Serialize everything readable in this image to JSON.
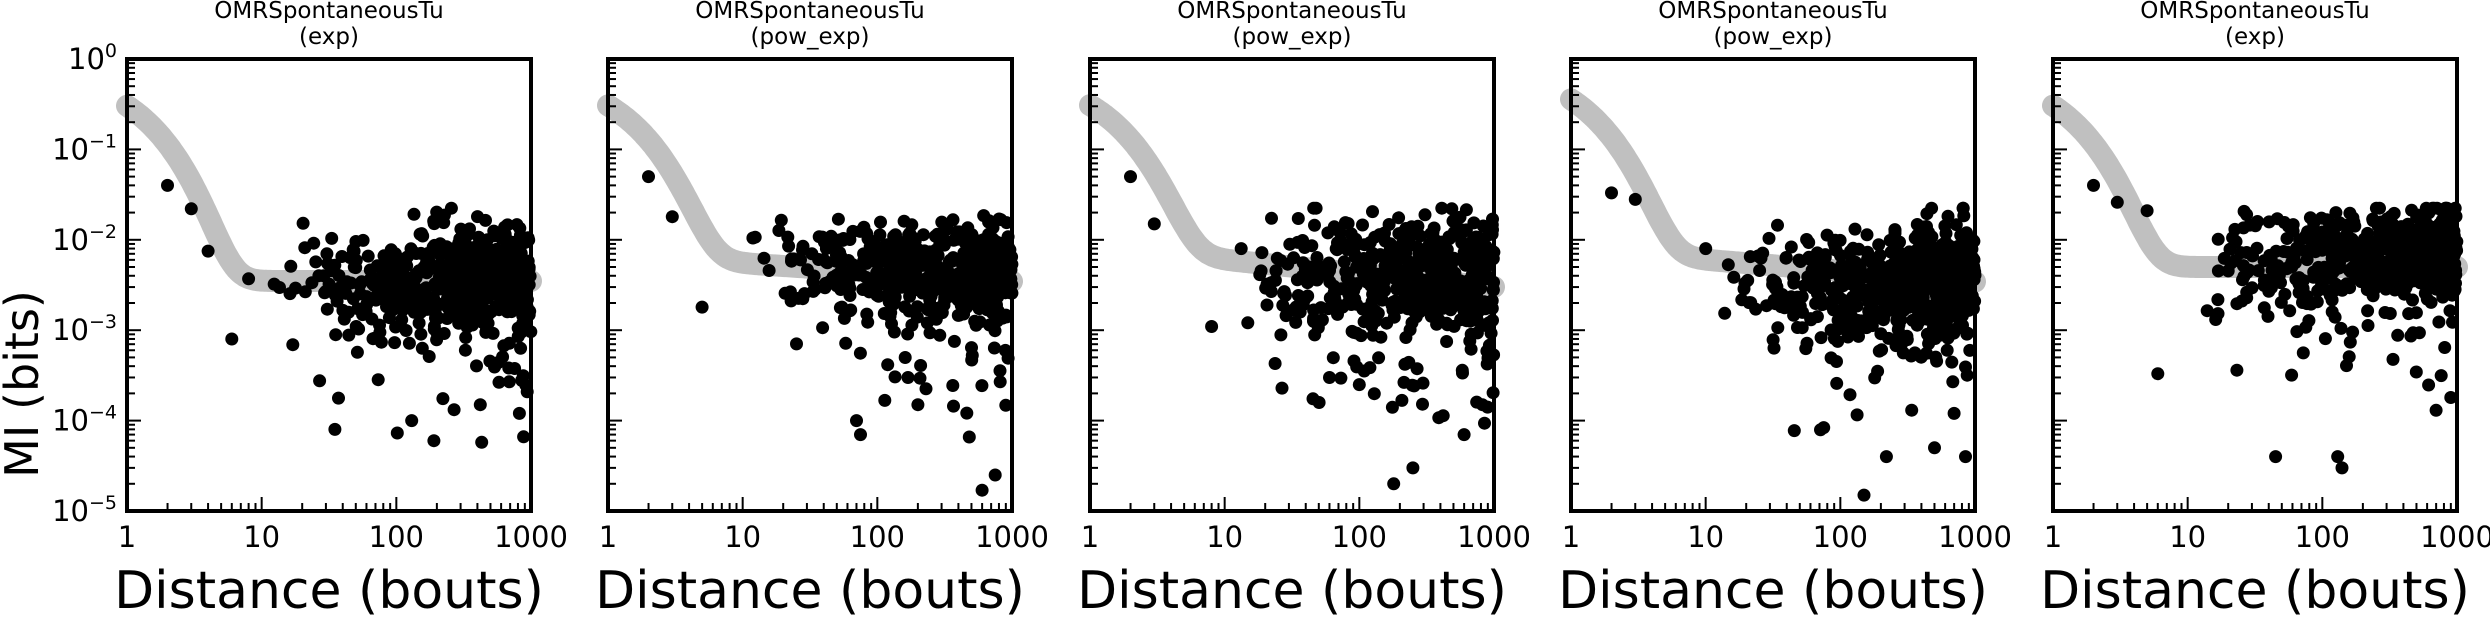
{
  "figure": {
    "ylabel": "MI (bits)",
    "ytick_labels": [
      {
        "base": "10",
        "exp": "0"
      },
      {
        "base": "10",
        "exp": "−1"
      },
      {
        "base": "10",
        "exp": "−2"
      },
      {
        "base": "10",
        "exp": "−3"
      },
      {
        "base": "10",
        "exp": "−4"
      },
      {
        "base": "10",
        "exp": "−5"
      }
    ],
    "colors": {
      "points": "#000000",
      "fit": "#c0c0c0",
      "frame": "#000000"
    }
  },
  "chart_data": [
    {
      "type": "scatter",
      "title": "OMRSpontaneousTu",
      "subtitle": "(exp)",
      "xlabel": "Distance (bouts)",
      "ylabel": "MI (bits)",
      "xscale": "log",
      "yscale": "log",
      "xlim": [
        1,
        1000
      ],
      "ylim": [
        1e-05,
        1
      ],
      "xtick_labels": [
        "1",
        "10",
        "100",
        "1000"
      ],
      "fit": {
        "model": "exponential decay + power-law floor",
        "amplitude": 0.3,
        "decay": 1.0,
        "floor": 0.0035,
        "floor_slope": 0.0
      },
      "points": {
        "described": [
          [
            2,
            0.04
          ],
          [
            3,
            0.022
          ],
          [
            4,
            0.0075
          ],
          [
            6,
            0.0008
          ],
          [
            8,
            0.0037
          ],
          [
            35,
            8e-05
          ],
          [
            130,
            0.0001
          ],
          [
            190,
            6e-05
          ],
          [
            420,
            0.00015
          ],
          [
            820,
            0.00012
          ]
        ],
        "cloud": {
          "count": 560,
          "center": 0.0035,
          "spread_dex": 0.5,
          "trend_per_decade": 0.05
        }
      }
    },
    {
      "type": "scatter",
      "title": "OMRSpontaneousTu",
      "subtitle": "(pow_exp)",
      "xlabel": "Distance (bouts)",
      "ylabel": "MI (bits)",
      "xscale": "log",
      "yscale": "log",
      "xlim": [
        1,
        1000
      ],
      "ylim": [
        1e-05,
        1
      ],
      "xtick_labels": [
        "1",
        "10",
        "100",
        "1000"
      ],
      "fit": {
        "model": "exponential decay + power-law floor",
        "amplitude": 0.3,
        "decay": 1.1,
        "floor": 0.0055,
        "floor_slope": -0.1
      },
      "points": {
        "described": [
          [
            2,
            0.05
          ],
          [
            3,
            0.018
          ],
          [
            5,
            0.0018
          ],
          [
            70,
            0.0001
          ],
          [
            75,
            7e-05
          ],
          [
            200,
            0.00015
          ],
          [
            600,
            1.7e-05
          ],
          [
            750,
            2.5e-05
          ]
        ],
        "cloud": {
          "count": 560,
          "center": 0.0045,
          "spread_dex": 0.5,
          "trend_per_decade": 0.0
        }
      }
    },
    {
      "type": "scatter",
      "title": "OMRSpontaneousTu",
      "subtitle": "(pow_exp)",
      "xlabel": "Distance (bouts)",
      "ylabel": "MI (bits)",
      "xscale": "log",
      "yscale": "log",
      "xlim": [
        1,
        1000
      ],
      "ylim": [
        1e-05,
        1
      ],
      "xtick_labels": [
        "1",
        "10",
        "100",
        "1000"
      ],
      "fit": {
        "model": "exponential decay + power-law floor",
        "amplitude": 0.3,
        "decay": 1.1,
        "floor": 0.006,
        "floor_slope": -0.15
      },
      "points": {
        "described": [
          [
            2,
            0.05
          ],
          [
            3,
            0.015
          ],
          [
            8,
            0.0011
          ],
          [
            60,
            0.0003
          ],
          [
            100,
            0.00025
          ],
          [
            180,
            2e-05
          ],
          [
            250,
            3e-05
          ],
          [
            600,
            7e-05
          ],
          [
            820,
            0.00015
          ]
        ],
        "cloud": {
          "count": 580,
          "center": 0.004,
          "spread_dex": 0.55,
          "trend_per_decade": 0.0
        }
      }
    },
    {
      "type": "scatter",
      "title": "OMRSpontaneousTu",
      "subtitle": "(pow_exp)",
      "xlabel": "Distance (bouts)",
      "ylabel": "MI (bits)",
      "xscale": "log",
      "yscale": "log",
      "xlim": [
        1,
        1000
      ],
      "ylim": [
        1e-05,
        1
      ],
      "xtick_labels": [
        "1",
        "10",
        "100",
        "1000"
      ],
      "fit": {
        "model": "exponential decay + power-law floor",
        "amplitude": 0.35,
        "decay": 1.0,
        "floor": 0.006,
        "floor_slope": -0.12
      },
      "points": {
        "described": [
          [
            2,
            0.033
          ],
          [
            3,
            0.028
          ],
          [
            10,
            0.008
          ],
          [
            150,
            1.5e-05
          ],
          [
            220,
            4e-05
          ],
          [
            500,
            5e-05
          ],
          [
            700,
            0.00012
          ],
          [
            850,
            4e-05
          ]
        ],
        "cloud": {
          "count": 560,
          "center": 0.0035,
          "spread_dex": 0.55,
          "trend_per_decade": 0.05
        }
      }
    },
    {
      "type": "scatter",
      "title": "OMRSpontaneousTu",
      "subtitle": "(exp)",
      "xlabel": "Distance (bouts)",
      "ylabel": "MI (bits)",
      "xscale": "log",
      "yscale": "log",
      "xlim": [
        1,
        1000
      ],
      "ylim": [
        1e-05,
        1
      ],
      "xtick_labels": [
        "1",
        "10",
        "100",
        "1000"
      ],
      "fit": {
        "model": "exponential decay + power-law floor",
        "amplitude": 0.3,
        "decay": 1.0,
        "floor": 0.005,
        "floor_slope": 0.0
      },
      "points": {
        "described": [
          [
            2,
            0.04
          ],
          [
            3,
            0.026
          ],
          [
            5,
            0.021
          ],
          [
            6,
            0.00033
          ],
          [
            45,
            4e-05
          ],
          [
            130,
            4e-05
          ],
          [
            140,
            3e-05
          ],
          [
            700,
            0.00013
          ],
          [
            900,
            0.00018
          ]
        ],
        "cloud": {
          "count": 560,
          "center": 0.006,
          "spread_dex": 0.5,
          "trend_per_decade": 0.1
        }
      }
    }
  ]
}
